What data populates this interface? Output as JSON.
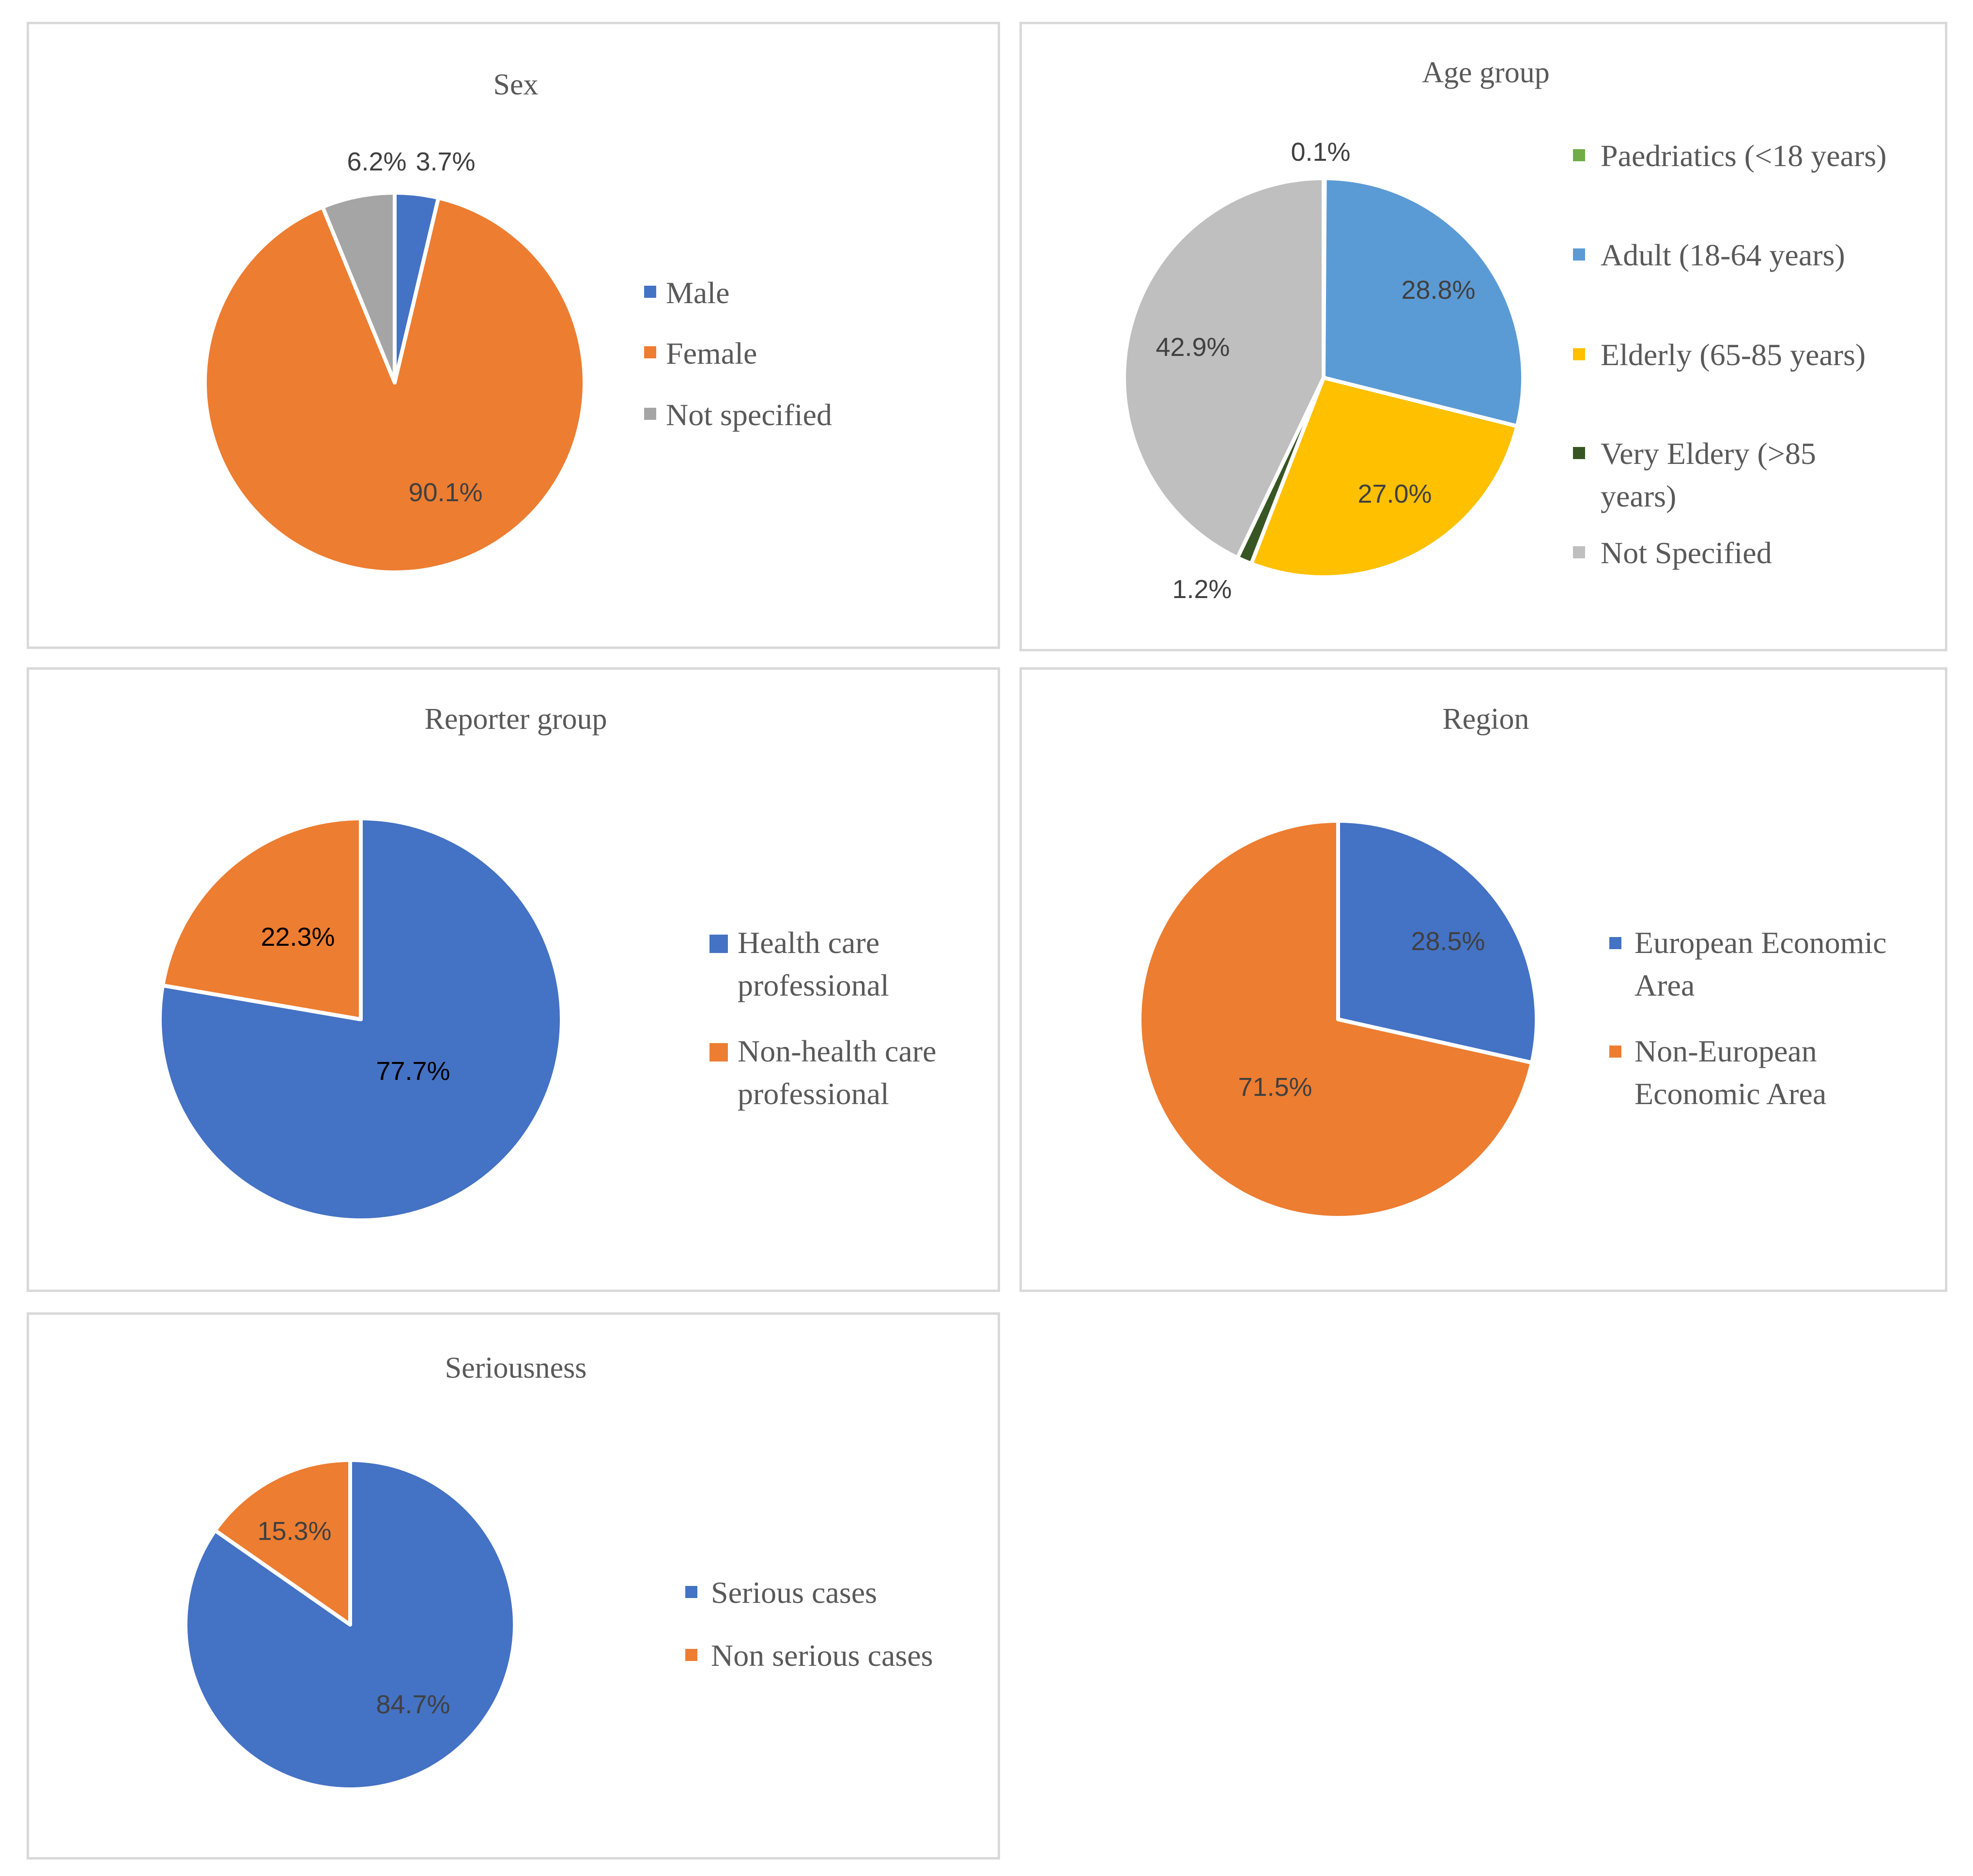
{
  "chart_data": [
    {
      "type": "pie",
      "title": "Sex",
      "categories": [
        "Male",
        "Female",
        "Not specified"
      ],
      "values": [
        3.7,
        90.1,
        6.2
      ],
      "data_labels": [
        "3.7%",
        "90.1%",
        "6.2%"
      ],
      "colors": [
        "#4472C4",
        "#ED7D31",
        "#A5A5A5"
      ],
      "legend": [
        "Male",
        "Female",
        "Not specified"
      ],
      "legend_position": "right"
    },
    {
      "type": "pie",
      "title": "Age group",
      "categories": [
        "Paedriatics (<18 years)",
        "Adult (18-64 years)",
        "Elderly (65-85 years)",
        "Very Eldery (>85 years)",
        "Not Specified"
      ],
      "values": [
        0.1,
        28.8,
        27.0,
        1.2,
        42.9
      ],
      "data_labels": [
        "0.1%",
        "28.8%",
        "27.0%",
        "1.2%",
        "42.9%"
      ],
      "colors": [
        "#70AD47",
        "#5B9BD5",
        "#FFC000",
        "#375623",
        "#BFBFBF"
      ],
      "legend": [
        "Paedriatics (<18 years)",
        "Adult (18-64 years)",
        "Elderly (65-85 years)",
        "Very Eldery (>85",
        "years)",
        "Not Specified"
      ],
      "legend_position": "right"
    },
    {
      "type": "pie",
      "title": "Reporter group",
      "categories": [
        "Health care professional",
        "Non-health care professional"
      ],
      "values": [
        77.7,
        22.3
      ],
      "data_labels": [
        "77.7%",
        "22.3%"
      ],
      "colors": [
        "#4472C4",
        "#ED7D31"
      ],
      "legend": [
        "Health care",
        "professional",
        "Non-health care",
        "professional"
      ],
      "legend_position": "right"
    },
    {
      "type": "pie",
      "title": "Region",
      "categories": [
        "European Economic Area",
        "Non-European Economic Area"
      ],
      "values": [
        28.5,
        71.5
      ],
      "data_labels": [
        "28.5%",
        "71.5%"
      ],
      "colors": [
        "#4472C4",
        "#ED7D31"
      ],
      "legend": [
        "European Economic",
        "Area",
        "Non-European",
        "Economic Area"
      ],
      "legend_position": "right"
    },
    {
      "type": "pie",
      "title": "Seriousness",
      "categories": [
        "Serious cases",
        "Non serious cases"
      ],
      "values": [
        84.7,
        15.3
      ],
      "data_labels": [
        "84.7%",
        "15.3%"
      ],
      "colors": [
        "#4472C4",
        "#ED7D31"
      ],
      "legend": [
        "Serious cases",
        "Non serious cases"
      ],
      "legend_position": "right"
    }
  ]
}
